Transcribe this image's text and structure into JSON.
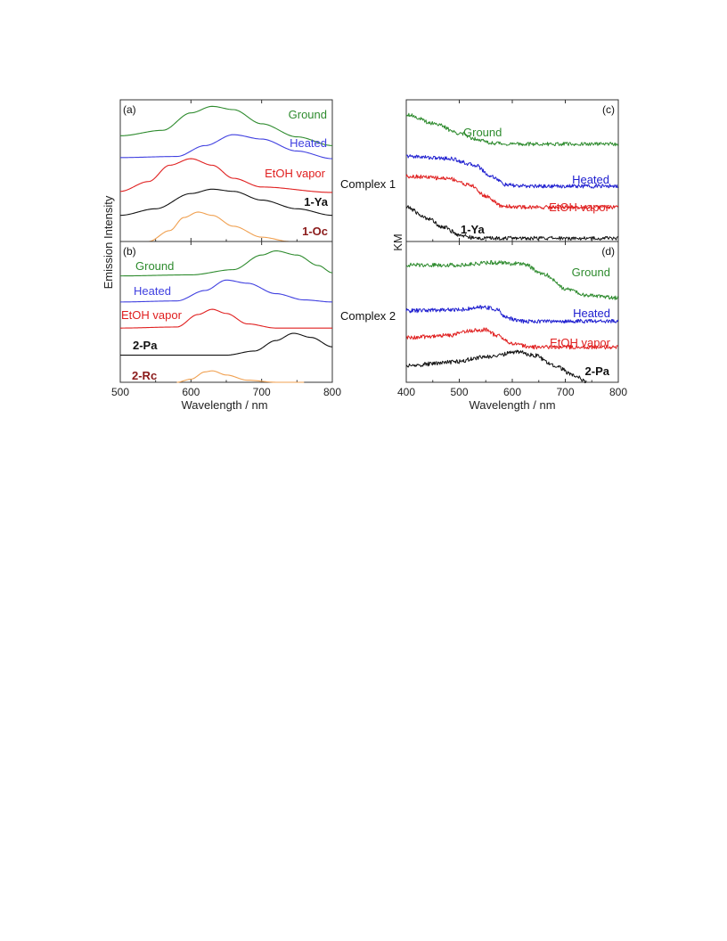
{
  "figure": {
    "left_panel_ylabel": "Emission Intensity",
    "right_panel_ylabel": "KM",
    "xlabel": "Wavelength / nm"
  },
  "chart_data": [
    {
      "panel": "(a)",
      "type": "line",
      "xlim": [
        500,
        800
      ],
      "x_ticks": [
        "500",
        "600",
        "700",
        "800"
      ],
      "xlabel": "",
      "ylabel": "Emission Intensity",
      "grid": false,
      "series": [
        {
          "name": "Ground",
          "color": "#2e8b2e",
          "label_bold": false,
          "points": [
            [
              500,
              0.97
            ],
            [
              560,
              1.02
            ],
            [
              600,
              1.18
            ],
            [
              630,
              1.24
            ],
            [
              660,
              1.21
            ],
            [
              700,
              1.08
            ],
            [
              750,
              0.96
            ],
            [
              800,
              0.88
            ]
          ]
        },
        {
          "name": "Heated",
          "color": "#4040e0",
          "label_bold": false,
          "points": [
            [
              500,
              0.77
            ],
            [
              580,
              0.78
            ],
            [
              620,
              0.88
            ],
            [
              660,
              0.98
            ],
            [
              700,
              0.94
            ],
            [
              750,
              0.83
            ],
            [
              800,
              0.76
            ]
          ]
        },
        {
          "name": "EtOH vapor",
          "color": "#e02020",
          "label_bold": false,
          "points": [
            [
              500,
              0.46
            ],
            [
              540,
              0.55
            ],
            [
              570,
              0.7
            ],
            [
              600,
              0.76
            ],
            [
              630,
              0.7
            ],
            [
              660,
              0.58
            ],
            [
              700,
              0.5
            ],
            [
              800,
              0.45
            ]
          ]
        },
        {
          "name": "1-Ya",
          "color": "#111111",
          "label_bold": true,
          "points": [
            [
              500,
              0.24
            ],
            [
              550,
              0.3
            ],
            [
              600,
              0.44
            ],
            [
              630,
              0.48
            ],
            [
              660,
              0.46
            ],
            [
              700,
              0.38
            ],
            [
              750,
              0.3
            ],
            [
              800,
              0.24
            ]
          ]
        },
        {
          "name": "1-Oc",
          "color": "#f0a050",
          "label_bold": true,
          "label_color": "#8b1a1a",
          "points": [
            [
              540,
              0.0
            ],
            [
              570,
              0.1
            ],
            [
              590,
              0.22
            ],
            [
              610,
              0.27
            ],
            [
              630,
              0.24
            ],
            [
              660,
              0.14
            ],
            [
              700,
              0.04
            ],
            [
              740,
              0.0
            ]
          ]
        }
      ]
    },
    {
      "panel": "(b)",
      "type": "line",
      "xlim": [
        500,
        800
      ],
      "x_ticks": [
        "500",
        "600",
        "700",
        "800"
      ],
      "xlabel": "Wavelength / nm",
      "ylabel": "Emission Intensity",
      "grid": false,
      "series": [
        {
          "name": "Ground",
          "color": "#2e8b2e",
          "label_bold": false,
          "points": [
            [
              500,
              1.02
            ],
            [
              600,
              1.03
            ],
            [
              660,
              1.08
            ],
            [
              700,
              1.22
            ],
            [
              720,
              1.26
            ],
            [
              750,
              1.22
            ],
            [
              780,
              1.12
            ],
            [
              800,
              1.05
            ]
          ]
        },
        {
          "name": "Heated",
          "color": "#4040e0",
          "label_bold": false,
          "points": [
            [
              500,
              0.77
            ],
            [
              580,
              0.78
            ],
            [
              620,
              0.88
            ],
            [
              650,
              0.98
            ],
            [
              680,
              0.95
            ],
            [
              720,
              0.85
            ],
            [
              760,
              0.79
            ],
            [
              800,
              0.77
            ]
          ]
        },
        {
          "name": "EtOH vapor",
          "color": "#e02020",
          "label_bold": false,
          "points": [
            [
              500,
              0.52
            ],
            [
              580,
              0.53
            ],
            [
              610,
              0.65
            ],
            [
              630,
              0.7
            ],
            [
              650,
              0.66
            ],
            [
              680,
              0.56
            ],
            [
              720,
              0.52
            ],
            [
              800,
              0.52
            ]
          ]
        },
        {
          "name": "2-Pa",
          "color": "#111111",
          "label_bold": true,
          "points": [
            [
              500,
              0.26
            ],
            [
              650,
              0.26
            ],
            [
              690,
              0.3
            ],
            [
              720,
              0.4
            ],
            [
              745,
              0.47
            ],
            [
              770,
              0.43
            ],
            [
              800,
              0.34
            ]
          ]
        },
        {
          "name": "2-Rc",
          "color": "#f0a050",
          "label_bold": true,
          "label_color": "#8b1a1a",
          "points": [
            [
              580,
              0.0
            ],
            [
              600,
              0.03
            ],
            [
              620,
              0.1
            ],
            [
              630,
              0.11
            ],
            [
              650,
              0.07
            ],
            [
              680,
              0.02
            ],
            [
              720,
              0.0
            ],
            [
              760,
              0.0
            ]
          ]
        }
      ]
    },
    {
      "panel": "(c)",
      "type": "line",
      "xlim": [
        400,
        800
      ],
      "x_ticks": [
        "400",
        "500",
        "600",
        "700",
        "800"
      ],
      "xlabel": "",
      "ylabel": "KM",
      "group_label": "Complex 1",
      "grid": false,
      "series": [
        {
          "name": "Ground",
          "color": "#2e8b2e",
          "label_bold": false,
          "points": [
            [
              400,
              1.12
            ],
            [
              450,
              1.04
            ],
            [
              500,
              0.95
            ],
            [
              530,
              0.9
            ],
            [
              560,
              0.86
            ],
            [
              600,
              0.85
            ],
            [
              800,
              0.85
            ]
          ]
        },
        {
          "name": "Heated",
          "color": "#2020d0",
          "label_bold": false,
          "points": [
            [
              400,
              0.74
            ],
            [
              480,
              0.72
            ],
            [
              530,
              0.66
            ],
            [
              560,
              0.56
            ],
            [
              590,
              0.48
            ],
            [
              620,
              0.47
            ],
            [
              800,
              0.47
            ]
          ]
        },
        {
          "name": "EtOH vapor",
          "color": "#e02020",
          "label_bold": false,
          "points": [
            [
              400,
              0.56
            ],
            [
              480,
              0.54
            ],
            [
              520,
              0.48
            ],
            [
              550,
              0.38
            ],
            [
              580,
              0.29
            ],
            [
              620,
              0.28
            ],
            [
              800,
              0.28
            ]
          ]
        },
        {
          "name": "1-Ya",
          "color": "#111111",
          "label_bold": true,
          "points": [
            [
              400,
              0.28
            ],
            [
              440,
              0.18
            ],
            [
              470,
              0.1
            ],
            [
              500,
              0.03
            ],
            [
              530,
              0.0
            ],
            [
              800,
              0.0
            ]
          ]
        }
      ]
    },
    {
      "panel": "(d)",
      "type": "line",
      "xlim": [
        400,
        800
      ],
      "x_ticks": [
        "400",
        "500",
        "600",
        "700",
        "800"
      ],
      "xlabel": "Wavelength / nm",
      "ylabel": "KM",
      "group_label": "Complex 2",
      "grid": false,
      "series": [
        {
          "name": "Ground",
          "color": "#2e8b2e",
          "label_bold": false,
          "points": [
            [
              400,
              1.0
            ],
            [
              500,
              1.0
            ],
            [
              560,
              1.02
            ],
            [
              620,
              1.01
            ],
            [
              660,
              0.92
            ],
            [
              700,
              0.8
            ],
            [
              740,
              0.74
            ],
            [
              800,
              0.72
            ]
          ]
        },
        {
          "name": "Heated",
          "color": "#2020d0",
          "label_bold": false,
          "points": [
            [
              400,
              0.61
            ],
            [
              500,
              0.62
            ],
            [
              550,
              0.64
            ],
            [
              570,
              0.62
            ],
            [
              590,
              0.55
            ],
            [
              620,
              0.52
            ],
            [
              800,
              0.52
            ]
          ]
        },
        {
          "name": "EtOH vapor",
          "color": "#e02020",
          "label_bold": false,
          "points": [
            [
              400,
              0.38
            ],
            [
              480,
              0.4
            ],
            [
              520,
              0.44
            ],
            [
              550,
              0.45
            ],
            [
              570,
              0.4
            ],
            [
              600,
              0.33
            ],
            [
              640,
              0.3
            ],
            [
              800,
              0.3
            ]
          ]
        },
        {
          "name": "2-Pa",
          "color": "#111111",
          "label_bold": true,
          "points": [
            [
              400,
              0.14
            ],
            [
              480,
              0.17
            ],
            [
              560,
              0.22
            ],
            [
              610,
              0.26
            ],
            [
              640,
              0.23
            ],
            [
              680,
              0.14
            ],
            [
              720,
              0.05
            ],
            [
              740,
              0.0
            ]
          ]
        }
      ]
    }
  ]
}
